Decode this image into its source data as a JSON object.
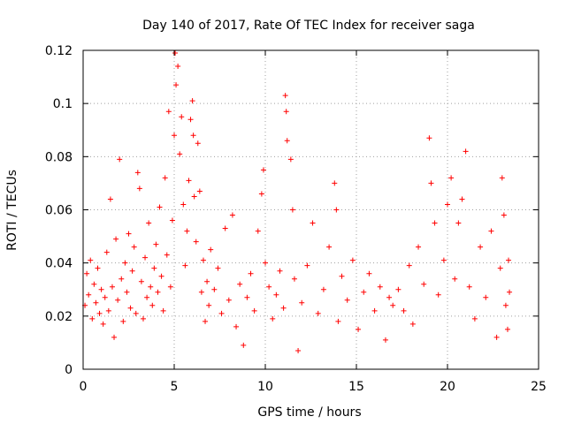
{
  "chart_data": {
    "type": "scatter",
    "title": "Day 140 of 2017, Rate Of TEC Index for receiver saga",
    "xlabel": "GPS time / hours",
    "ylabel": "ROTI / TECUs",
    "xlim": [
      0,
      25
    ],
    "ylim": [
      0,
      0.12
    ],
    "xticks": [
      0,
      5,
      10,
      15,
      20,
      25
    ],
    "xtick_labels": [
      "0",
      "5",
      "10",
      "15",
      "20",
      "25"
    ],
    "yticks": [
      0,
      0.02,
      0.04,
      0.06,
      0.08,
      0.1,
      0.12
    ],
    "ytick_labels": [
      "0",
      "0.02",
      "0.04",
      "0.06",
      "0.08",
      "0.1",
      "0.12"
    ],
    "grid": true,
    "marker": "plus",
    "color": "#ff0000",
    "series": [
      {
        "name": "ROTI",
        "note": "dense scatter; representative sample of points read from the plot",
        "points": [
          [
            0.1,
            0.024
          ],
          [
            0.2,
            0.036
          ],
          [
            0.3,
            0.028
          ],
          [
            0.4,
            0.041
          ],
          [
            0.5,
            0.019
          ],
          [
            0.6,
            0.032
          ],
          [
            0.7,
            0.025
          ],
          [
            0.8,
            0.038
          ],
          [
            0.9,
            0.021
          ],
          [
            1.0,
            0.03
          ],
          [
            1.1,
            0.017
          ],
          [
            1.2,
            0.027
          ],
          [
            1.3,
            0.044
          ],
          [
            1.4,
            0.022
          ],
          [
            1.5,
            0.064
          ],
          [
            1.6,
            0.031
          ],
          [
            1.7,
            0.012
          ],
          [
            1.8,
            0.049
          ],
          [
            1.9,
            0.026
          ],
          [
            2.0,
            0.079
          ],
          [
            2.1,
            0.034
          ],
          [
            2.2,
            0.018
          ],
          [
            2.3,
            0.04
          ],
          [
            2.4,
            0.029
          ],
          [
            2.5,
            0.051
          ],
          [
            2.6,
            0.023
          ],
          [
            2.7,
            0.037
          ],
          [
            2.8,
            0.046
          ],
          [
            2.9,
            0.021
          ],
          [
            3.0,
            0.074
          ],
          [
            3.1,
            0.068
          ],
          [
            3.2,
            0.033
          ],
          [
            3.3,
            0.019
          ],
          [
            3.4,
            0.042
          ],
          [
            3.5,
            0.027
          ],
          [
            3.6,
            0.055
          ],
          [
            3.7,
            0.031
          ],
          [
            3.8,
            0.024
          ],
          [
            3.9,
            0.038
          ],
          [
            4.0,
            0.047
          ],
          [
            4.1,
            0.029
          ],
          [
            4.2,
            0.061
          ],
          [
            4.3,
            0.035
          ],
          [
            4.4,
            0.022
          ],
          [
            4.5,
            0.072
          ],
          [
            4.6,
            0.043
          ],
          [
            4.7,
            0.097
          ],
          [
            4.8,
            0.031
          ],
          [
            4.9,
            0.056
          ],
          [
            5.0,
            0.088
          ],
          [
            5.05,
            0.119
          ],
          [
            5.1,
            0.107
          ],
          [
            5.2,
            0.114
          ],
          [
            5.3,
            0.081
          ],
          [
            5.4,
            0.095
          ],
          [
            5.5,
            0.062
          ],
          [
            5.6,
            0.039
          ],
          [
            5.7,
            0.052
          ],
          [
            5.8,
            0.071
          ],
          [
            5.9,
            0.094
          ],
          [
            6.0,
            0.101
          ],
          [
            6.05,
            0.088
          ],
          [
            6.1,
            0.065
          ],
          [
            6.2,
            0.048
          ],
          [
            6.3,
            0.085
          ],
          [
            6.4,
            0.067
          ],
          [
            6.5,
            0.029
          ],
          [
            6.6,
            0.041
          ],
          [
            6.7,
            0.018
          ],
          [
            6.8,
            0.033
          ],
          [
            6.9,
            0.024
          ],
          [
            7.0,
            0.045
          ],
          [
            7.2,
            0.03
          ],
          [
            7.4,
            0.038
          ],
          [
            7.6,
            0.021
          ],
          [
            7.8,
            0.053
          ],
          [
            8.0,
            0.026
          ],
          [
            8.2,
            0.058
          ],
          [
            8.4,
            0.016
          ],
          [
            8.6,
            0.032
          ],
          [
            8.8,
            0.009
          ],
          [
            9.0,
            0.027
          ],
          [
            9.2,
            0.036
          ],
          [
            9.4,
            0.022
          ],
          [
            9.6,
            0.052
          ],
          [
            9.8,
            0.066
          ],
          [
            9.9,
            0.075
          ],
          [
            10.0,
            0.04
          ],
          [
            10.2,
            0.031
          ],
          [
            10.4,
            0.019
          ],
          [
            10.6,
            0.028
          ],
          [
            10.8,
            0.037
          ],
          [
            11.0,
            0.023
          ],
          [
            11.1,
            0.103
          ],
          [
            11.15,
            0.097
          ],
          [
            11.2,
            0.086
          ],
          [
            11.4,
            0.079
          ],
          [
            11.5,
            0.06
          ],
          [
            11.6,
            0.034
          ],
          [
            11.8,
            0.007
          ],
          [
            12.0,
            0.025
          ],
          [
            12.3,
            0.039
          ],
          [
            12.6,
            0.055
          ],
          [
            12.9,
            0.021
          ],
          [
            13.2,
            0.03
          ],
          [
            13.5,
            0.046
          ],
          [
            13.8,
            0.07
          ],
          [
            13.9,
            0.06
          ],
          [
            14.0,
            0.018
          ],
          [
            14.2,
            0.035
          ],
          [
            14.5,
            0.026
          ],
          [
            14.8,
            0.041
          ],
          [
            15.1,
            0.015
          ],
          [
            15.4,
            0.029
          ],
          [
            15.7,
            0.036
          ],
          [
            16.0,
            0.022
          ],
          [
            16.3,
            0.031
          ],
          [
            16.6,
            0.011
          ],
          [
            16.8,
            0.027
          ],
          [
            17.0,
            0.024
          ],
          [
            17.3,
            0.03
          ],
          [
            17.6,
            0.022
          ],
          [
            17.9,
            0.039
          ],
          [
            18.1,
            0.017
          ],
          [
            18.4,
            0.046
          ],
          [
            18.7,
            0.032
          ],
          [
            19.0,
            0.087
          ],
          [
            19.1,
            0.07
          ],
          [
            19.3,
            0.055
          ],
          [
            19.5,
            0.028
          ],
          [
            19.8,
            0.041
          ],
          [
            20.0,
            0.062
          ],
          [
            20.2,
            0.072
          ],
          [
            20.4,
            0.034
          ],
          [
            20.6,
            0.055
          ],
          [
            20.8,
            0.064
          ],
          [
            21.0,
            0.082
          ],
          [
            21.2,
            0.031
          ],
          [
            21.5,
            0.019
          ],
          [
            21.8,
            0.046
          ],
          [
            22.1,
            0.027
          ],
          [
            22.4,
            0.052
          ],
          [
            22.7,
            0.012
          ],
          [
            22.9,
            0.038
          ],
          [
            23.0,
            0.072
          ],
          [
            23.1,
            0.058
          ],
          [
            23.2,
            0.024
          ],
          [
            23.3,
            0.015
          ],
          [
            23.35,
            0.041
          ],
          [
            23.4,
            0.029
          ]
        ]
      }
    ]
  }
}
